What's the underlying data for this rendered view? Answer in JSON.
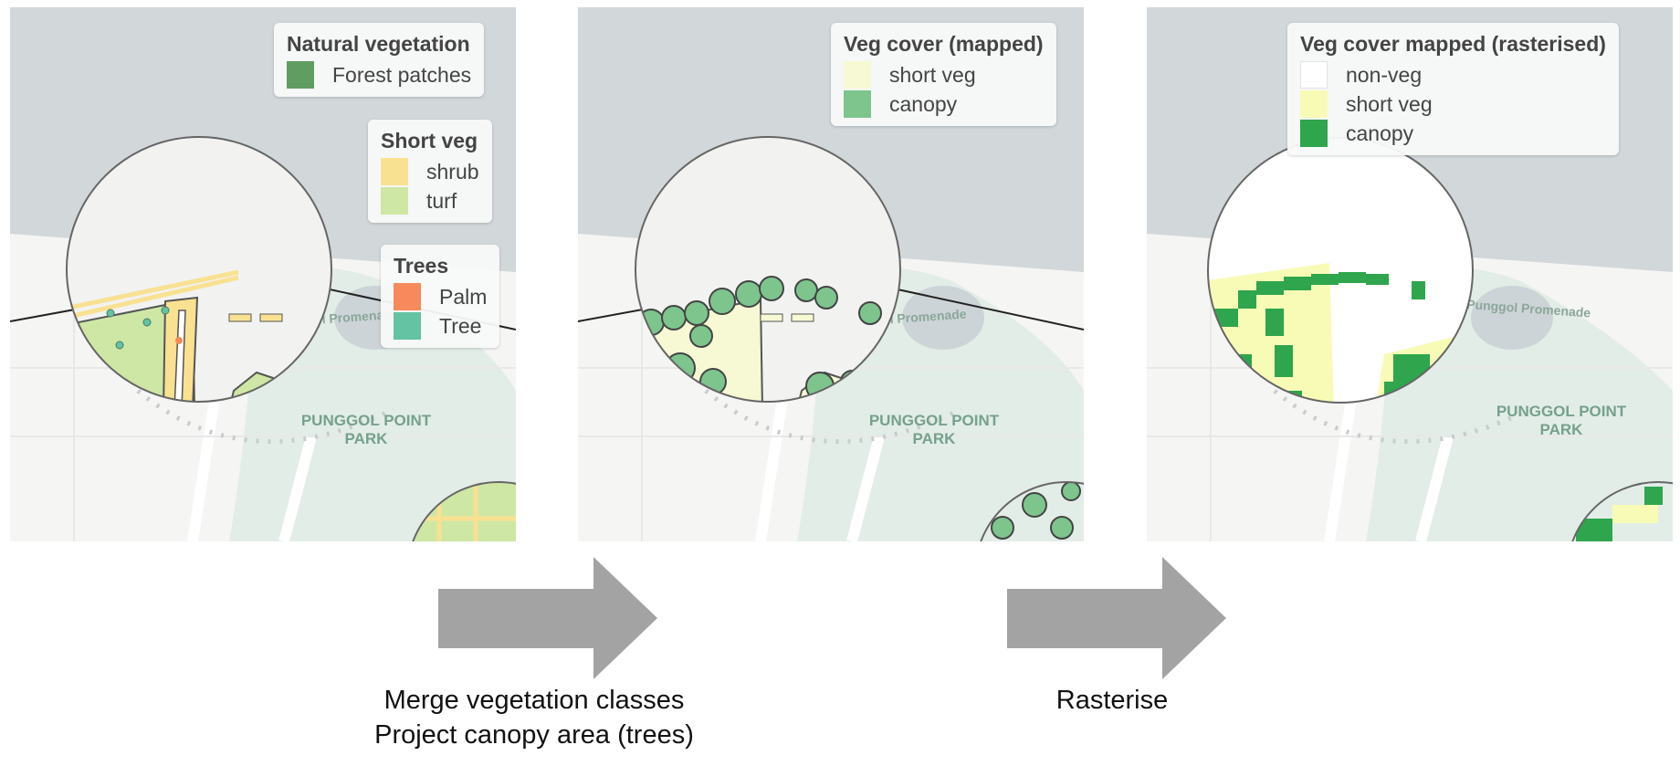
{
  "panels": [
    {
      "legends": [
        {
          "title": "Natural vegetation",
          "items": [
            {
              "label": "Forest patches",
              "color": "#5f9d61"
            }
          ]
        },
        {
          "title": "Short veg",
          "items": [
            {
              "label": "shrub",
              "color": "#f9e192"
            },
            {
              "label": "turf",
              "color": "#cfe7a4"
            }
          ]
        },
        {
          "title": "Trees",
          "items": [
            {
              "label": "Palm",
              "color": "#f68a5c"
            },
            {
              "label": "Tree",
              "color": "#63c3a2"
            }
          ]
        }
      ]
    },
    {
      "legends": [
        {
          "title": "Veg cover (mapped)",
          "items": [
            {
              "label": "short veg",
              "color": "#f6f9d3"
            },
            {
              "label": "canopy",
              "color": "#7dc58d"
            }
          ]
        }
      ]
    },
    {
      "legends": [
        {
          "title": "Veg cover mapped (rasterised)",
          "items": [
            {
              "label": "non-veg",
              "color": "#ffffff"
            },
            {
              "label": "short veg",
              "color": "#f8fbb6"
            },
            {
              "label": "canopy",
              "color": "#2fa54d"
            }
          ]
        }
      ]
    }
  ],
  "map_labels": {
    "promenade": "Punggol Promenade",
    "park_line1": "PUNGGOL POINT",
    "park_line2": "PARK"
  },
  "captions": {
    "merge_line1": "Merge vegetation classes",
    "merge_line2": "Project canopy area (trees)",
    "rasterise": "Rasterise"
  },
  "colors": {
    "water": "#d2d7da",
    "land": "#f5f5f4",
    "park": "#e3ede7",
    "arrow": "#a3a3a3"
  }
}
